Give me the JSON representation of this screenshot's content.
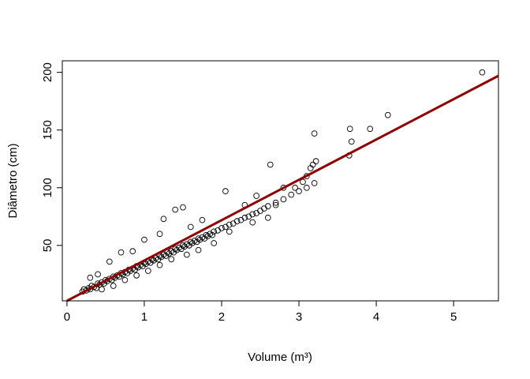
{
  "chart_data": {
    "type": "scatter",
    "title": "",
    "xlabel": "Volume (m³)",
    "ylabel": "Diâmetro (cm)",
    "xlim": [
      -0.06,
      5.58
    ],
    "ylim": [
      2,
      210
    ],
    "x_ticks": [
      0,
      1,
      2,
      3,
      4,
      5
    ],
    "x_tick_labels": [
      "0",
      "1",
      "2",
      "3",
      "4",
      "5"
    ],
    "y_ticks": [
      50,
      100,
      150,
      200
    ],
    "y_tick_labels": [
      "50",
      "100",
      "150",
      "200"
    ],
    "grid": false,
    "legend": "none",
    "series": [
      {
        "marker": "open-circle",
        "color": "#000000",
        "points": [
          [
            0.2,
            10
          ],
          [
            0.22,
            12
          ],
          [
            0.25,
            11
          ],
          [
            0.28,
            13
          ],
          [
            0.3,
            12
          ],
          [
            0.32,
            15
          ],
          [
            0.35,
            14
          ],
          [
            0.38,
            13
          ],
          [
            0.4,
            17
          ],
          [
            0.42,
            16
          ],
          [
            0.45,
            18
          ],
          [
            0.48,
            17
          ],
          [
            0.5,
            20
          ],
          [
            0.52,
            19
          ],
          [
            0.55,
            21
          ],
          [
            0.58,
            20
          ],
          [
            0.6,
            23
          ],
          [
            0.62,
            22
          ],
          [
            0.65,
            24
          ],
          [
            0.68,
            23
          ],
          [
            0.7,
            26
          ],
          [
            0.72,
            25
          ],
          [
            0.75,
            27
          ],
          [
            0.78,
            26
          ],
          [
            0.8,
            29
          ],
          [
            0.82,
            28
          ],
          [
            0.85,
            30
          ],
          [
            0.88,
            29
          ],
          [
            0.9,
            32
          ],
          [
            0.92,
            31
          ],
          [
            0.95,
            33
          ],
          [
            0.98,
            32
          ],
          [
            1.0,
            35
          ],
          [
            1.02,
            34
          ],
          [
            1.05,
            36
          ],
          [
            1.08,
            35
          ],
          [
            1.1,
            38
          ],
          [
            1.12,
            37
          ],
          [
            1.15,
            39
          ],
          [
            1.18,
            38
          ],
          [
            1.2,
            41
          ],
          [
            1.22,
            40
          ],
          [
            1.25,
            42
          ],
          [
            1.28,
            41
          ],
          [
            1.3,
            44
          ],
          [
            1.32,
            43
          ],
          [
            1.35,
            45
          ],
          [
            1.38,
            44
          ],
          [
            1.4,
            47
          ],
          [
            1.42,
            46
          ],
          [
            1.45,
            48
          ],
          [
            1.48,
            47
          ],
          [
            1.5,
            50
          ],
          [
            1.52,
            49
          ],
          [
            1.55,
            51
          ],
          [
            1.58,
            50
          ],
          [
            1.6,
            53
          ],
          [
            1.62,
            52
          ],
          [
            1.65,
            54
          ],
          [
            1.68,
            53
          ],
          [
            1.7,
            56
          ],
          [
            1.72,
            55
          ],
          [
            1.75,
            57
          ],
          [
            1.78,
            56
          ],
          [
            1.8,
            59
          ],
          [
            1.82,
            58
          ],
          [
            1.85,
            60
          ],
          [
            1.88,
            59
          ],
          [
            1.9,
            62
          ],
          [
            1.95,
            63
          ],
          [
            2.0,
            65
          ],
          [
            2.05,
            66
          ],
          [
            2.1,
            68
          ],
          [
            2.15,
            69
          ],
          [
            2.2,
            71
          ],
          [
            2.25,
            72
          ],
          [
            2.3,
            74
          ],
          [
            2.35,
            75
          ],
          [
            2.4,
            77
          ],
          [
            2.45,
            78
          ],
          [
            2.5,
            80
          ],
          [
            2.55,
            82
          ],
          [
            2.6,
            84
          ],
          [
            2.7,
            87
          ],
          [
            2.8,
            90
          ],
          [
            2.9,
            94
          ],
          [
            3.0,
            97
          ],
          [
            3.1,
            100
          ],
          [
            3.2,
            104
          ],
          [
            0.3,
            22
          ],
          [
            0.4,
            25
          ],
          [
            0.55,
            36
          ],
          [
            0.7,
            44
          ],
          [
            0.85,
            45
          ],
          [
            1.0,
            55
          ],
          [
            1.2,
            60
          ],
          [
            1.25,
            73
          ],
          [
            1.4,
            81
          ],
          [
            1.5,
            83
          ],
          [
            1.6,
            66
          ],
          [
            1.75,
            72
          ],
          [
            2.05,
            97
          ],
          [
            2.3,
            85
          ],
          [
            2.45,
            93
          ],
          [
            2.63,
            120
          ],
          [
            2.8,
            100
          ],
          [
            2.95,
            100
          ],
          [
            0.45,
            12
          ],
          [
            0.6,
            15
          ],
          [
            0.75,
            20
          ],
          [
            0.9,
            24
          ],
          [
            1.05,
            28
          ],
          [
            1.2,
            33
          ],
          [
            1.35,
            38
          ],
          [
            1.55,
            42
          ],
          [
            1.7,
            46
          ],
          [
            1.9,
            52
          ],
          [
            2.1,
            62
          ],
          [
            2.4,
            70
          ],
          [
            2.6,
            74
          ],
          [
            2.7,
            85
          ],
          [
            3.05,
            105
          ],
          [
            3.1,
            110
          ],
          [
            3.15,
            117
          ],
          [
            3.18,
            120
          ],
          [
            3.2,
            147
          ],
          [
            3.22,
            123
          ],
          [
            3.65,
            128
          ],
          [
            3.66,
            151
          ],
          [
            3.68,
            140
          ],
          [
            3.92,
            151
          ],
          [
            4.15,
            163
          ],
          [
            5.37,
            200
          ]
        ]
      }
    ],
    "regression_line": {
      "color": "#8b0000",
      "from": [
        0.0,
        2.0
      ],
      "to": [
        5.58,
        197.0
      ]
    }
  }
}
